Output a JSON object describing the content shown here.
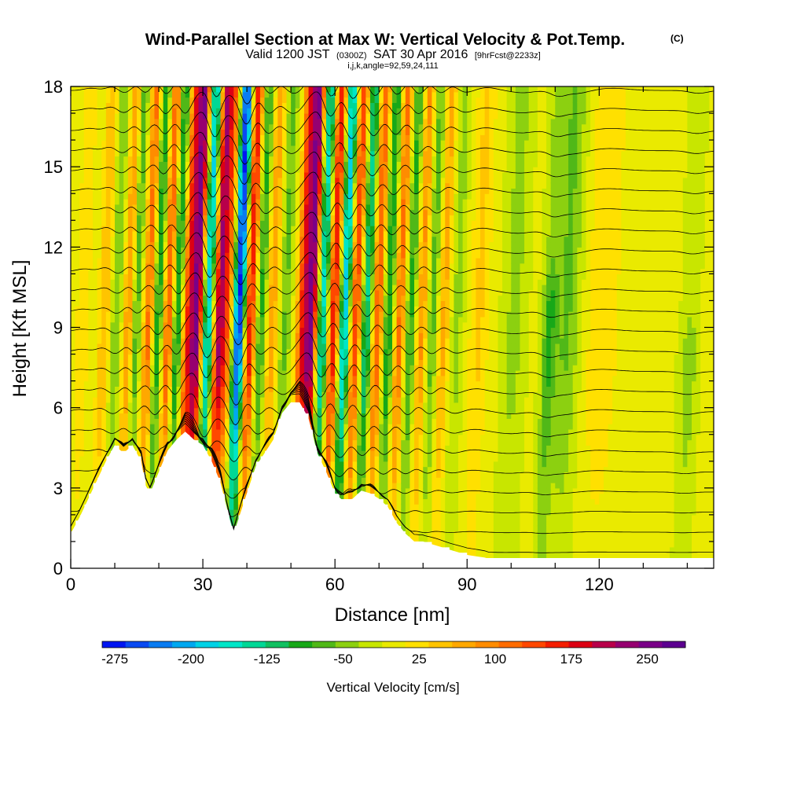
{
  "header": {
    "title": "Wind-Parallel Section at Max W: Vertical Velocity & Pot.Temp.",
    "title_sup": "(C)",
    "valid_prefix": "Valid 1200 JST",
    "valid_zulu": "(0300Z)",
    "valid_date": "SAT 30 Apr 2016",
    "forecast": "[9hrFcst@2233z]",
    "params": "i,j,k,angle=92,59,24,111"
  },
  "chart_data": {
    "type": "heatmap",
    "title": "Wind-Parallel Section at Max W: Vertical Velocity & Pot.Temp.",
    "xlabel": "Distance [nm]",
    "ylabel": "Height [Kft MSL]",
    "xlim": [
      0,
      146
    ],
    "ylim": [
      0,
      18
    ],
    "x_ticks": [
      0,
      30,
      60,
      90,
      120
    ],
    "y_ticks": [
      0,
      3,
      6,
      9,
      12,
      15,
      18
    ],
    "colorbar": {
      "label": "Vertical Velocity [cm/s]",
      "min": -287.5,
      "max": 287.5,
      "step": 25,
      "tick_values": [
        -275,
        -200,
        -125,
        -50,
        25,
        100,
        175,
        250
      ],
      "tick_labels": [
        "-275",
        "-200",
        "-125",
        "-50",
        "25",
        "100",
        "175",
        "250"
      ],
      "colors": [
        "#0016f2",
        "#0a4af2",
        "#0a7cf2",
        "#00a8f0",
        "#00d2e6",
        "#00e6c8",
        "#00d896",
        "#10c060",
        "#18a818",
        "#50b818",
        "#8cd010",
        "#c8e600",
        "#eaea00",
        "#ffe000",
        "#ffc400",
        "#ffa800",
        "#ff8c00",
        "#ff6c00",
        "#ff4800",
        "#f41e00",
        "#dc0014",
        "#b8004a",
        "#960070",
        "#7a0088",
        "#5c0090"
      ]
    },
    "terrain_profile": {
      "x": [
        0,
        2,
        4,
        6,
        8,
        10,
        12,
        14,
        16,
        17,
        18,
        20,
        22,
        24,
        26,
        28,
        30,
        32,
        34,
        36,
        37,
        38,
        40,
        42,
        44,
        46,
        48,
        50,
        52,
        54,
        56,
        58,
        60,
        62,
        64,
        66,
        68,
        70,
        72,
        74,
        76,
        78,
        80,
        82,
        84,
        86,
        88,
        90,
        92,
        94,
        95,
        100,
        110,
        120,
        130,
        140,
        146
      ],
      "y": [
        1.3,
        1.9,
        2.6,
        3.3,
        4.0,
        4.6,
        4.3,
        4.6,
        4.0,
        3.1,
        2.8,
        3.6,
        4.4,
        4.8,
        5.1,
        4.8,
        4.6,
        4.0,
        3.2,
        1.9,
        1.3,
        1.8,
        2.8,
        3.8,
        4.3,
        4.8,
        5.8,
        6.2,
        6.2,
        5.6,
        4.3,
        3.6,
        2.8,
        2.5,
        2.6,
        2.9,
        2.8,
        2.6,
        2.3,
        1.7,
        1.3,
        1.0,
        1.0,
        0.9,
        0.8,
        0.7,
        0.6,
        0.5,
        0.45,
        0.4,
        0.35,
        0.35,
        0.35,
        0.35,
        0.35,
        0.35,
        0.35
      ]
    },
    "velocity_bands": [
      {
        "x": 2,
        "w": 1.6,
        "amp": 40,
        "top": 18
      },
      {
        "x": 7,
        "w": 1.5,
        "amp": 70,
        "top": 18
      },
      {
        "x": 9.5,
        "w": 1.4,
        "amp": -60,
        "top": 18
      },
      {
        "x": 12.5,
        "w": 1.3,
        "amp": 110,
        "top": 18
      },
      {
        "x": 14,
        "w": 1.2,
        "amp": -90,
        "top": 18
      },
      {
        "x": 17,
        "w": 1.3,
        "amp": 130,
        "top": 18
      },
      {
        "x": 19,
        "w": 1.2,
        "amp": -110,
        "top": 18
      },
      {
        "x": 21.5,
        "w": 1.2,
        "amp": 150,
        "top": 18
      },
      {
        "x": 23.5,
        "w": 1.2,
        "amp": -120,
        "top": 18
      },
      {
        "x": 26,
        "w": 1.4,
        "amp": 175,
        "top": 18
      },
      {
        "x": 28,
        "w": 1.3,
        "amp": 260,
        "top": 18
      },
      {
        "x": 30.5,
        "w": 1.3,
        "amp": -200,
        "top": 18
      },
      {
        "x": 33,
        "w": 1.4,
        "amp": 240,
        "top": 18
      },
      {
        "x": 35,
        "w": 1.3,
        "amp": 120,
        "top": 18
      },
      {
        "x": 37.5,
        "w": 1.4,
        "amp": -290,
        "top": 18
      },
      {
        "x": 40,
        "w": 1.3,
        "amp": 200,
        "top": 18
      },
      {
        "x": 42.5,
        "w": 1.3,
        "amp": -90,
        "top": 18
      },
      {
        "x": 45,
        "w": 1.3,
        "amp": 90,
        "top": 18
      },
      {
        "x": 48,
        "w": 1.3,
        "amp": -60,
        "top": 18
      },
      {
        "x": 52,
        "w": 1.4,
        "amp": 180,
        "top": 18
      },
      {
        "x": 54,
        "w": 1.3,
        "amp": 260,
        "top": 18
      },
      {
        "x": 56.5,
        "w": 1.3,
        "amp": -170,
        "top": 18
      },
      {
        "x": 59,
        "w": 1.3,
        "amp": 200,
        "top": 18
      },
      {
        "x": 61.5,
        "w": 1.3,
        "amp": -200,
        "top": 18
      },
      {
        "x": 64,
        "w": 1.3,
        "amp": 170,
        "top": 18
      },
      {
        "x": 66.5,
        "w": 1.3,
        "amp": -140,
        "top": 18
      },
      {
        "x": 69,
        "w": 1.3,
        "amp": 150,
        "top": 18
      },
      {
        "x": 71.5,
        "w": 1.3,
        "amp": -110,
        "top": 18
      },
      {
        "x": 74,
        "w": 1.3,
        "amp": 130,
        "top": 18
      },
      {
        "x": 76.5,
        "w": 1.3,
        "amp": -90,
        "top": 18
      },
      {
        "x": 79,
        "w": 1.3,
        "amp": 100,
        "top": 18
      },
      {
        "x": 81.5,
        "w": 1.3,
        "amp": -70,
        "top": 18
      },
      {
        "x": 84,
        "w": 1.4,
        "amp": 80,
        "top": 18
      },
      {
        "x": 87,
        "w": 1.6,
        "amp": -40,
        "top": 18
      },
      {
        "x": 92,
        "w": 2.2,
        "amp": 50,
        "top": 18
      },
      {
        "x": 100,
        "w": 2.5,
        "amp": -40,
        "top": 18
      },
      {
        "x": 108,
        "w": 1.6,
        "amp": -80,
        "top": 10
      },
      {
        "x": 112,
        "w": 3.0,
        "amp": -60,
        "top": 18
      },
      {
        "x": 120,
        "w": 4.0,
        "amp": 40,
        "top": 18
      },
      {
        "x": 140,
        "w": 2.0,
        "amp": -50,
        "top": 8
      }
    ],
    "contour_levels": 24
  }
}
